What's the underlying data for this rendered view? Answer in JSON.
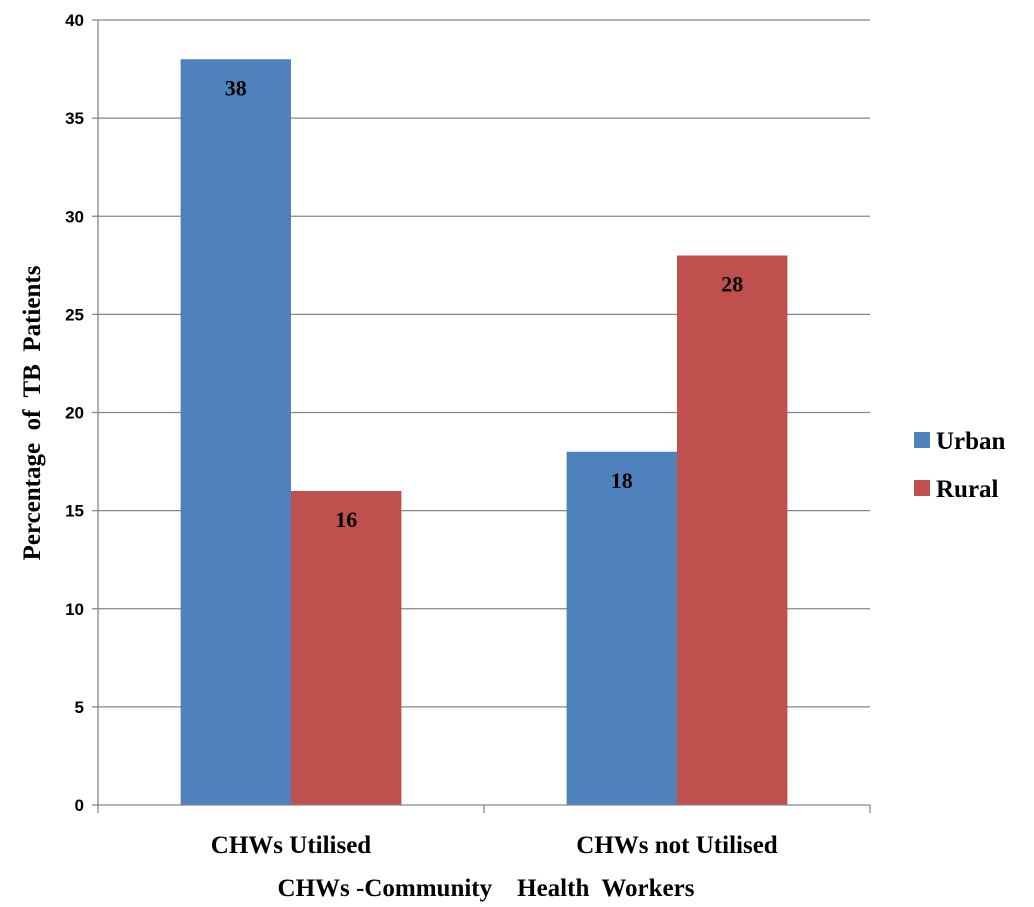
{
  "chart_data": {
    "type": "bar",
    "categories": [
      "CHWs Utilised",
      "CHWs not Utilised"
    ],
    "series": [
      {
        "name": "Urban",
        "values": [
          38,
          18
        ],
        "color": "#4F81BD"
      },
      {
        "name": "Rural",
        "values": [
          16,
          28
        ],
        "color": "#C0504D"
      }
    ],
    "xlabel": "CHWs -Community    Health  Workers",
    "ylabel": "Percentage  of  TB  Patients",
    "ylim": [
      0,
      40
    ],
    "yticks": [
      0,
      5,
      10,
      15,
      20,
      25,
      30,
      35,
      40
    ],
    "grid": true,
    "legend": "right",
    "data_labels": true
  }
}
